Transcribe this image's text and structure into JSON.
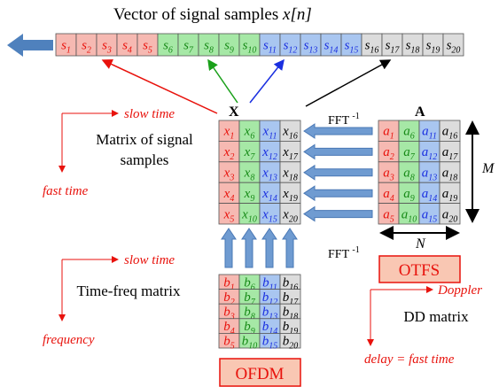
{
  "title": {
    "text": "Vector of signal samples",
    "symbol": "x[n]"
  },
  "vector": [
    "s1",
    "s2",
    "s3",
    "s4",
    "s5",
    "s6",
    "s7",
    "s8",
    "s9",
    "s10",
    "s11",
    "s12",
    "s13",
    "s14",
    "s15",
    "s16",
    "s17",
    "s18",
    "s19",
    "s20"
  ],
  "matrix_x": {
    "label": "X",
    "rows": [
      [
        "x1",
        "x6",
        "x11",
        "x16"
      ],
      [
        "x2",
        "x7",
        "x12",
        "x17"
      ],
      [
        "x3",
        "x8",
        "x13",
        "x18"
      ],
      [
        "x4",
        "x9",
        "x14",
        "x19"
      ],
      [
        "x5",
        "x10",
        "x15",
        "x20"
      ]
    ]
  },
  "matrix_a": {
    "label": "A",
    "rows": [
      [
        "a1",
        "a6",
        "a11",
        "a16"
      ],
      [
        "a2",
        "a7",
        "a12",
        "a17"
      ],
      [
        "a3",
        "a8",
        "a13",
        "a18"
      ],
      [
        "a4",
        "a9",
        "a14",
        "a19"
      ],
      [
        "a5",
        "a10",
        "a15",
        "a20"
      ]
    ]
  },
  "matrix_b": {
    "rows": [
      [
        "b1",
        "b6",
        "b11",
        "b16"
      ],
      [
        "b2",
        "b7",
        "b12",
        "b17"
      ],
      [
        "b3",
        "b8",
        "b13",
        "b18"
      ],
      [
        "b4",
        "b9",
        "b14",
        "b19"
      ],
      [
        "b5",
        "b10",
        "b15",
        "b20"
      ]
    ]
  },
  "fft_top": {
    "text": "FFT",
    "exp": "-1"
  },
  "fft_bottom": {
    "text": "FFT",
    "exp": "-1"
  },
  "dim_m": "M",
  "dim_n": "N",
  "otfs": "OTFS",
  "ofdm": "OFDM",
  "left_top": {
    "axis_h": "slow time",
    "axis_v": "fast time",
    "caption_1": "Matrix of signal",
    "caption_2": "samples"
  },
  "left_bottom": {
    "axis_h": "slow time",
    "axis_v": "frequency",
    "caption": "Time-freq matrix"
  },
  "right_bottom": {
    "axis_h": "Doppler",
    "axis_v": "delay = fast time",
    "caption": "DD matrix"
  }
}
